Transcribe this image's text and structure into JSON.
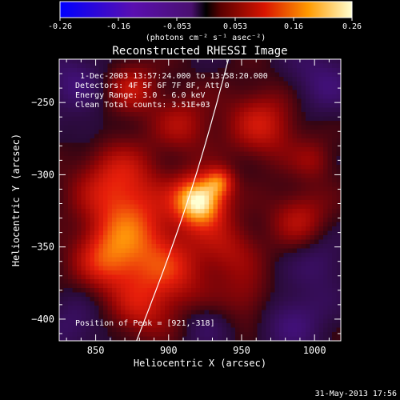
{
  "colorbar": {
    "tick_labels": [
      "-0.26",
      "-0.16",
      "-0.053",
      "0.053",
      "0.16",
      "0.26"
    ],
    "range": [
      -0.26,
      0.26
    ],
    "unit_label": "(photons cm⁻² s⁻¹ asec⁻²)"
  },
  "chart_data": {
    "type": "heatmap",
    "title": "Reconstructed RHESSI Image",
    "xlabel": "Heliocentric X (arcsec)",
    "ylabel": "Heliocentric Y (arcsec)",
    "xlim": [
      825,
      1018
    ],
    "ylim": [
      -415,
      -220
    ],
    "x_ticks": [
      850,
      900,
      950,
      1000
    ],
    "y_ticks": [
      -250,
      -300,
      -350,
      -400
    ],
    "annotations": {
      "time_range": "1-Dec-2003 13:57:24.000 to 13:58:20.000",
      "detectors": "Detectors: 4F 5F 6F 7F 8F, Att 0",
      "energy": "Energy Range: 3.0 - 6.0 keV",
      "clean": "Clean    Total counts: 3.51E+03",
      "peak": "Position of Peak = [921,-318]"
    },
    "peak_position": [
      921,
      -318
    ],
    "limb_line": {
      "x": [
        878,
        941
      ],
      "y": [
        -415,
        -220
      ]
    }
  },
  "footer": {
    "timestamp": "31-May-2013 17:56"
  }
}
